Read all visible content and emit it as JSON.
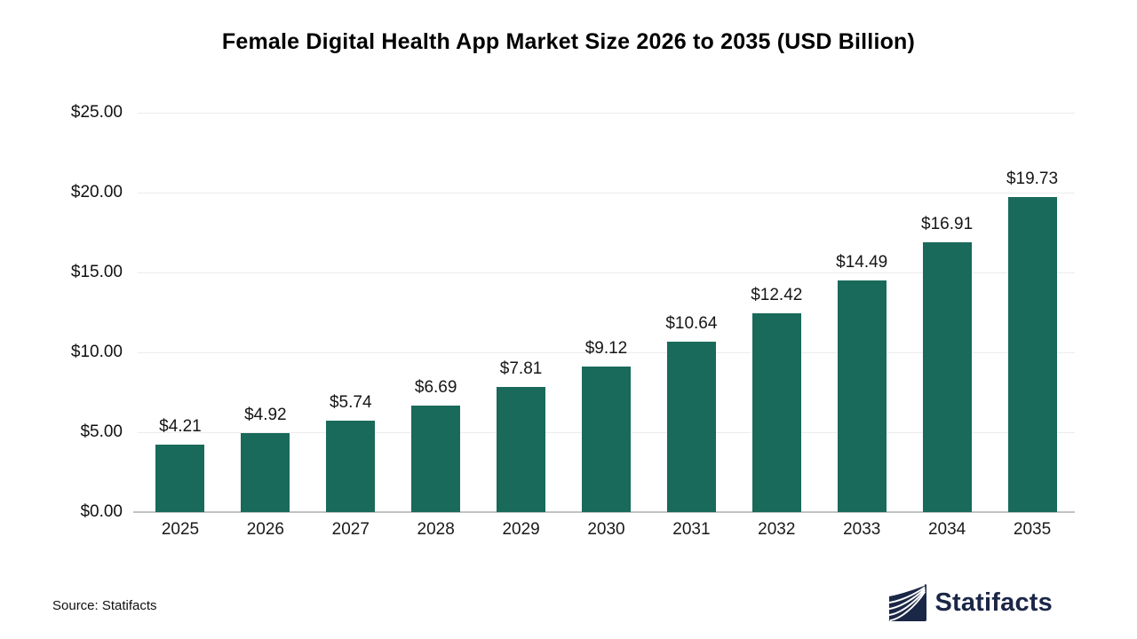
{
  "title": "Female Digital Health App Market Size 2026 to 2035 (USD Billion)",
  "source_note": "Source: Statifacts",
  "brand": {
    "name": "Statifacts",
    "icon": "statifacts-waves-icon",
    "color": "#1b2746"
  },
  "chart_data": {
    "type": "bar",
    "title": "Female Digital Health App Market Size 2026 to 2035 (USD Billion)",
    "categories": [
      "2025",
      "2026",
      "2027",
      "2028",
      "2029",
      "2030",
      "2031",
      "2032",
      "2033",
      "2034",
      "2035"
    ],
    "values": [
      4.21,
      4.92,
      5.74,
      6.69,
      7.81,
      9.12,
      10.64,
      12.42,
      14.49,
      16.91,
      19.73
    ],
    "value_labels": [
      "$4.21",
      "$4.92",
      "$5.74",
      "$6.69",
      "$7.81",
      "$9.12",
      "$10.64",
      "$12.42",
      "$14.49",
      "$16.91",
      "$19.73"
    ],
    "xlabel": "",
    "ylabel": "",
    "ylim": [
      0,
      25
    ],
    "yticks": [
      0,
      5,
      10,
      15,
      20,
      25
    ],
    "ytick_labels": [
      "$0.00",
      "$5.00",
      "$10.00",
      "$15.00",
      "$20.00",
      "$25.00"
    ],
    "grid": true,
    "legend": false,
    "bar_color": "#196a5a",
    "gridline_color": "#ececec",
    "axis_line_color": "#c0c3c6"
  }
}
